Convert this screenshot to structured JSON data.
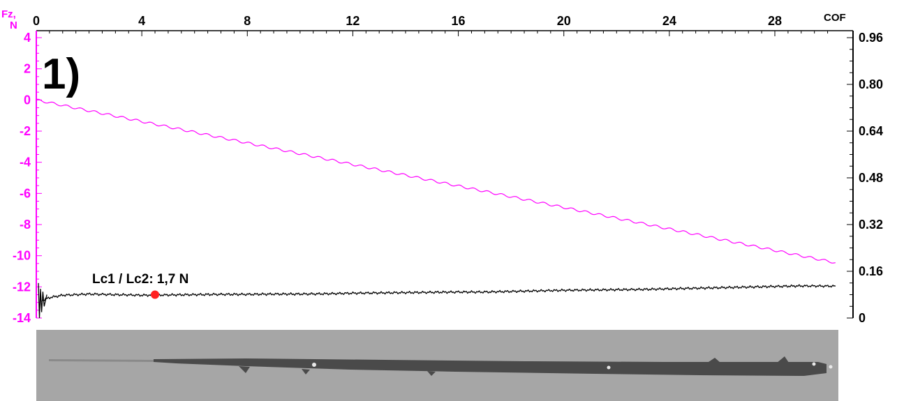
{
  "chart_data": {
    "type": "line",
    "panel_label": "1)",
    "x_ticks": [
      "0",
      "4",
      "8",
      "12",
      "16",
      "20",
      "24",
      "28"
    ],
    "xlim": [
      0,
      30.4
    ],
    "left_axis": {
      "label_line1": "Fz,",
      "label_line2": "N",
      "ylim": [
        -14,
        4
      ],
      "ticks": [
        "4",
        "2",
        "0",
        "-2",
        "-4",
        "-6",
        "-8",
        "-10",
        "-12",
        "-14"
      ],
      "color": "#ff00ff"
    },
    "right_axis": {
      "label": "COF",
      "ylim": [
        0,
        0.96
      ],
      "ticks": [
        "0.96",
        "0.80",
        "0.64",
        "0.48",
        "0.32",
        "0.16",
        "0"
      ],
      "color": "#000000"
    },
    "series": [
      {
        "axis": "left",
        "color": "#ff00ff",
        "x": [
          0,
          2,
          4,
          6,
          8,
          10,
          12,
          14,
          16,
          18,
          20,
          22,
          24,
          26,
          28,
          30.3
        ],
        "y": [
          0,
          -0.69,
          -1.38,
          -2.07,
          -2.76,
          -3.45,
          -4.14,
          -4.83,
          -5.52,
          -6.21,
          -6.9,
          -7.59,
          -8.28,
          -8.97,
          -9.66,
          -10.45
        ]
      },
      {
        "axis": "right",
        "color": "#000000",
        "x": [
          0.2,
          0.5,
          1,
          2,
          3,
          4,
          5,
          6,
          7,
          8,
          9,
          10,
          11,
          12,
          13,
          14,
          15,
          16,
          17,
          18,
          19,
          20,
          21,
          22,
          23,
          24,
          25,
          26,
          27,
          28,
          29,
          30.3
        ],
        "y": [
          0.06,
          0.07,
          0.078,
          0.082,
          0.08,
          0.078,
          0.079,
          0.08,
          0.081,
          0.081,
          0.082,
          0.082,
          0.083,
          0.085,
          0.086,
          0.087,
          0.088,
          0.089,
          0.089,
          0.091,
          0.093,
          0.095,
          0.096,
          0.097,
          0.098,
          0.1,
          0.102,
          0.104,
          0.106,
          0.108,
          0.11,
          0.109
        ]
      }
    ],
    "marker": {
      "x": 4.5,
      "y": 0.08,
      "color": "#ff2020"
    },
    "annotation": "Lc1 / Lc2: 1,7 N"
  },
  "micrograph": {
    "background": "#a6a6a6",
    "track_color": "#4a4a4a"
  }
}
